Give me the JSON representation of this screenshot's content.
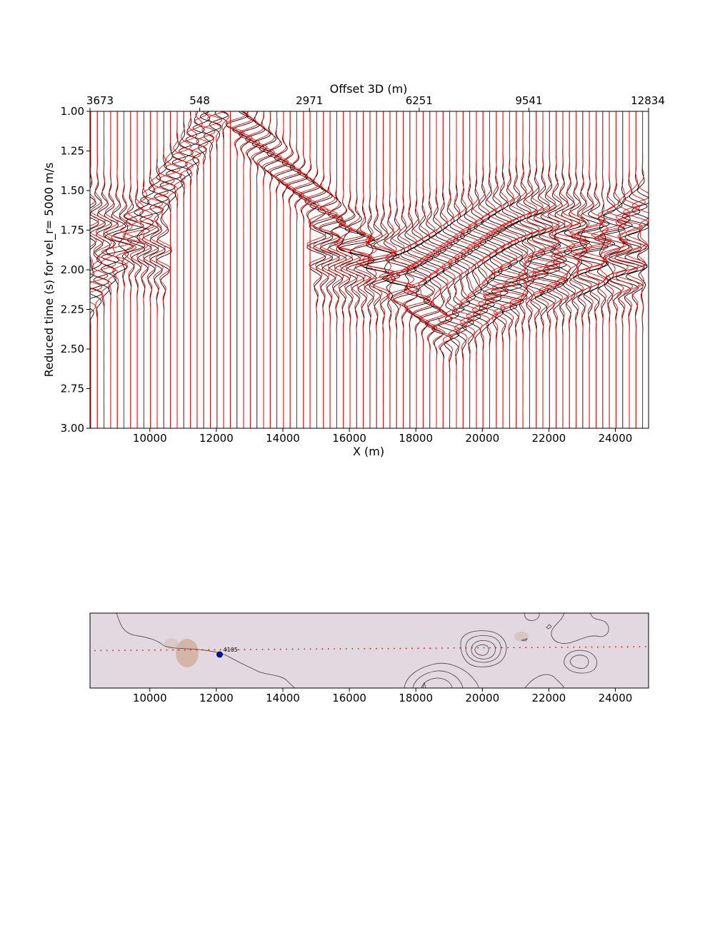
{
  "chart_data": [
    {
      "type": "line",
      "title": "",
      "xlabel": "X (m)",
      "ylabel": "Reduced time (s) for vel_r= 5000 m/s",
      "top_xlabel": "Offset 3D (m)",
      "xlim": [
        8200,
        25000
      ],
      "ylim": [
        3.0,
        1.0
      ],
      "x_ticks": [
        10000,
        12000,
        14000,
        16000,
        18000,
        20000,
        22000,
        24000
      ],
      "x_tick_labels": [
        "10000",
        "12000",
        "14000",
        "16000",
        "18000",
        "20000",
        "22000",
        "24000"
      ],
      "y_ticks": [
        1.0,
        1.25,
        1.5,
        1.75,
        2.0,
        2.25,
        2.5,
        2.75,
        3.0
      ],
      "y_tick_labels": [
        "1.00",
        "1.25",
        "1.50",
        "1.75",
        "2.00",
        "2.25",
        "2.50",
        "2.75",
        "3.00"
      ],
      "top_ticks": [
        8200,
        11500,
        14800,
        18100,
        21400,
        25000
      ],
      "top_tick_labels": [
        "3673",
        "548",
        "2971",
        "6251",
        "9541",
        "12834"
      ],
      "trace_spacing_m": 200,
      "series": [
        {
          "color": "#000000",
          "style": "wiggle-traces"
        },
        {
          "color": "#ff0000",
          "style": "wiggle-traces"
        }
      ],
      "grid": false,
      "legend": "none"
    },
    {
      "type": "map",
      "xlim": [
        8200,
        25000
      ],
      "x_ticks": [
        10000,
        12000,
        14000,
        16000,
        18000,
        20000,
        22000,
        24000
      ],
      "x_tick_labels": [
        "10000",
        "12000",
        "14000",
        "16000",
        "18000",
        "20000",
        "22000",
        "24000"
      ],
      "background_color": "#e1d8e0",
      "station": {
        "x": 12100,
        "label": "4105",
        "color": "#0000cc"
      },
      "receiver_line_color": "#ff0000"
    }
  ]
}
